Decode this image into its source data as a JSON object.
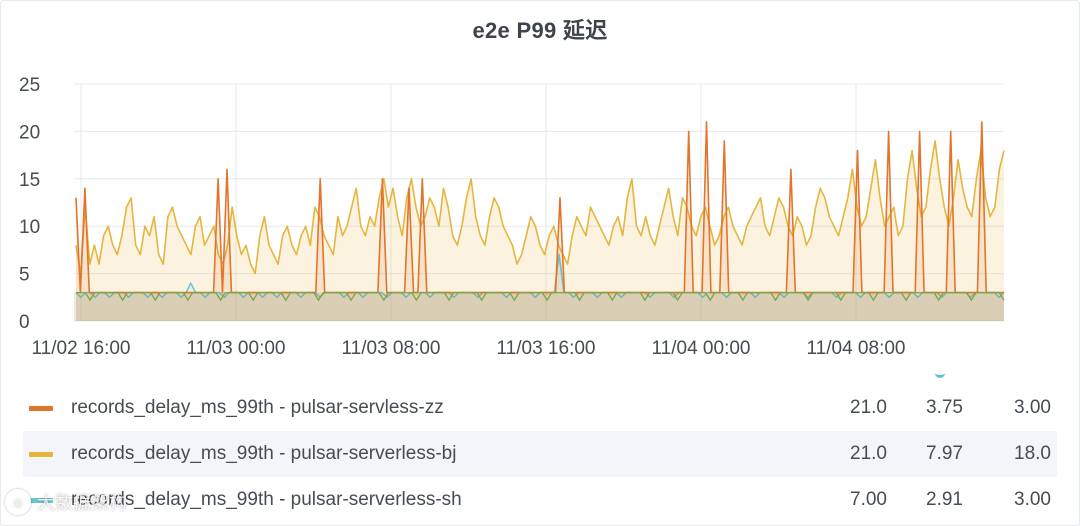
{
  "panel": {
    "title": "e2e P99 延迟"
  },
  "chart_data": {
    "type": "area",
    "title": "e2e P99 延迟",
    "xlabel": "",
    "ylabel": "",
    "ylim": [
      0,
      25
    ],
    "y_ticks": [
      "0",
      "5",
      "10",
      "15",
      "20",
      "25"
    ],
    "x_ticks": [
      "11/02 16:00",
      "11/03 00:00",
      "11/03 08:00",
      "11/03 16:00",
      "11/04 00:00",
      "11/04 08:00"
    ],
    "grid": true,
    "legend_position": "bottom",
    "series": [
      {
        "name": "records_delay_ms_99th - pulsar-servless-zz",
        "color": "#e0752d",
        "max": "21.0",
        "avg": "3.75",
        "current": "3.00",
        "values": [
          13,
          3,
          14,
          3,
          3,
          3,
          3,
          3,
          3,
          3,
          3,
          3,
          3,
          3,
          3,
          3,
          3,
          3,
          3,
          3,
          3,
          3,
          3,
          3,
          3,
          3,
          3,
          3,
          3,
          3,
          3,
          3,
          15,
          3,
          16,
          3,
          3,
          3,
          3,
          3,
          3,
          3,
          3,
          3,
          3,
          3,
          3,
          3,
          3,
          3,
          3,
          3,
          3,
          3,
          3,
          15,
          3,
          3,
          3,
          3,
          3,
          3,
          3,
          3,
          3,
          3,
          3,
          3,
          3,
          15,
          3,
          3,
          3,
          3,
          3,
          14,
          3,
          3,
          15,
          3,
          3,
          3,
          3,
          3,
          3,
          3,
          3,
          3,
          3,
          3,
          3,
          3,
          3,
          3,
          3,
          3,
          3,
          3,
          3,
          3,
          3,
          3,
          3,
          3,
          3,
          3,
          3,
          3,
          3,
          13,
          3,
          3,
          3,
          3,
          3,
          3,
          3,
          3,
          3,
          3,
          3,
          3,
          3,
          3,
          3,
          3,
          3,
          3,
          3,
          3,
          3,
          3,
          3,
          3,
          3,
          3,
          3,
          3,
          20,
          3,
          3,
          3,
          21,
          3,
          3,
          3,
          19,
          3,
          3,
          3,
          3,
          3,
          3,
          3,
          3,
          3,
          3,
          3,
          3,
          3,
          3,
          16,
          3,
          3,
          3,
          3,
          3,
          3,
          3,
          3,
          3,
          3,
          3,
          3,
          3,
          3,
          18,
          3,
          3,
          3,
          3,
          3,
          3,
          20,
          3,
          3,
          3,
          3,
          3,
          3,
          20,
          3,
          3,
          3,
          3,
          3,
          3,
          20,
          3,
          3,
          3,
          3,
          3,
          3,
          21,
          3,
          3,
          3,
          3,
          3
        ]
      },
      {
        "name": "records_delay_ms_99th - pulsar-serverless-bj",
        "color": "#e5b53e",
        "max": "21.0",
        "avg": "7.97",
        "current": "18.0",
        "values": [
          8,
          5,
          12,
          6,
          8,
          6,
          9,
          10,
          8,
          7,
          9,
          12,
          13,
          8,
          7,
          10,
          9,
          11,
          7,
          6,
          11,
          12,
          10,
          9,
          8,
          7,
          10,
          11,
          8,
          9,
          10,
          7,
          6,
          8,
          12,
          9,
          7,
          8,
          6,
          5,
          9,
          11,
          8,
          7,
          6,
          9,
          10,
          8,
          7,
          9,
          10,
          8,
          12,
          11,
          9,
          8,
          7,
          11,
          9,
          10,
          12,
          14,
          10,
          9,
          11,
          10,
          13,
          15,
          12,
          14,
          11,
          9,
          13,
          15,
          12,
          10,
          11,
          13,
          12,
          10,
          14,
          12,
          9,
          8,
          10,
          13,
          15,
          11,
          9,
          8,
          11,
          13,
          12,
          10,
          9,
          8,
          6,
          7,
          9,
          11,
          10,
          8,
          7,
          9,
          10,
          8,
          7,
          6,
          9,
          11,
          10,
          9,
          12,
          11,
          10,
          9,
          8,
          10,
          11,
          9,
          13,
          15,
          10,
          9,
          11,
          9,
          8,
          10,
          12,
          14,
          11,
          9,
          13,
          12,
          10,
          9,
          11,
          12,
          10,
          8,
          9,
          11,
          12,
          10,
          9,
          8,
          10,
          11,
          12,
          13,
          10,
          9,
          11,
          13,
          12,
          10,
          9,
          11,
          10,
          8,
          9,
          12,
          14,
          13,
          11,
          10,
          9,
          11,
          13,
          16,
          12,
          10,
          11,
          14,
          17,
          13,
          10,
          11,
          12,
          9,
          10,
          15,
          18,
          14,
          11,
          12,
          16,
          19,
          15,
          12,
          10,
          13,
          17,
          14,
          12,
          11,
          15,
          18,
          13,
          11,
          12,
          16,
          18
        ]
      },
      {
        "name": "records_delay_ms_99th - pulsar-serverless-sh",
        "color": "#6ec6d9",
        "max": "7.00",
        "avg": "2.91",
        "current": "3.00",
        "values": [
          3,
          2.5,
          3,
          3,
          2.5,
          3,
          3,
          2.5,
          3,
          3,
          3,
          2.5,
          3,
          3,
          3,
          2.5,
          3,
          3,
          2.5,
          3,
          3,
          3,
          2.5,
          3,
          4,
          3,
          3,
          2.5,
          3,
          3,
          3,
          2.5,
          3,
          3,
          3,
          2.5,
          3,
          3,
          3,
          2.5,
          3,
          3,
          2.5,
          3,
          3,
          3,
          3,
          2.5,
          3,
          3,
          3,
          2.5,
          3,
          3,
          3,
          3,
          2.5,
          3,
          3,
          3,
          2.5,
          3,
          3,
          3,
          3,
          2.5,
          3,
          3,
          3,
          2.5,
          3,
          3,
          3,
          3,
          2.5,
          3,
          3,
          3,
          3,
          2.5,
          3,
          3,
          3,
          3,
          2.5,
          3,
          3,
          3,
          3,
          3,
          2.5,
          3,
          3,
          3,
          3,
          3,
          2.5,
          3,
          3,
          3,
          3,
          7,
          3,
          3,
          2.5,
          3,
          3,
          3,
          3,
          2.5,
          3,
          3,
          3,
          3,
          2.5,
          3,
          3,
          3,
          3,
          3,
          2.5,
          3,
          3,
          3,
          3,
          2.5,
          3,
          3,
          3,
          3,
          3,
          2.5,
          3,
          3,
          3,
          3,
          2.5,
          3,
          3,
          3,
          3,
          3,
          2.5,
          3,
          3,
          3,
          3,
          3,
          2.5,
          3,
          3,
          3,
          3,
          2.5,
          3,
          3,
          3,
          3,
          3,
          2.5,
          3,
          3,
          3,
          3,
          2.5,
          3,
          3,
          3,
          3,
          3,
          2.5,
          3,
          3,
          3,
          3,
          3,
          2.5,
          3,
          3,
          3,
          3,
          2.5,
          3,
          3,
          3,
          3,
          3,
          2.5,
          3,
          3,
          3,
          3,
          3,
          2.5,
          3
        ]
      }
    ]
  },
  "watermark": {
    "icon": "logo-icon",
    "text": "大数据架构"
  }
}
